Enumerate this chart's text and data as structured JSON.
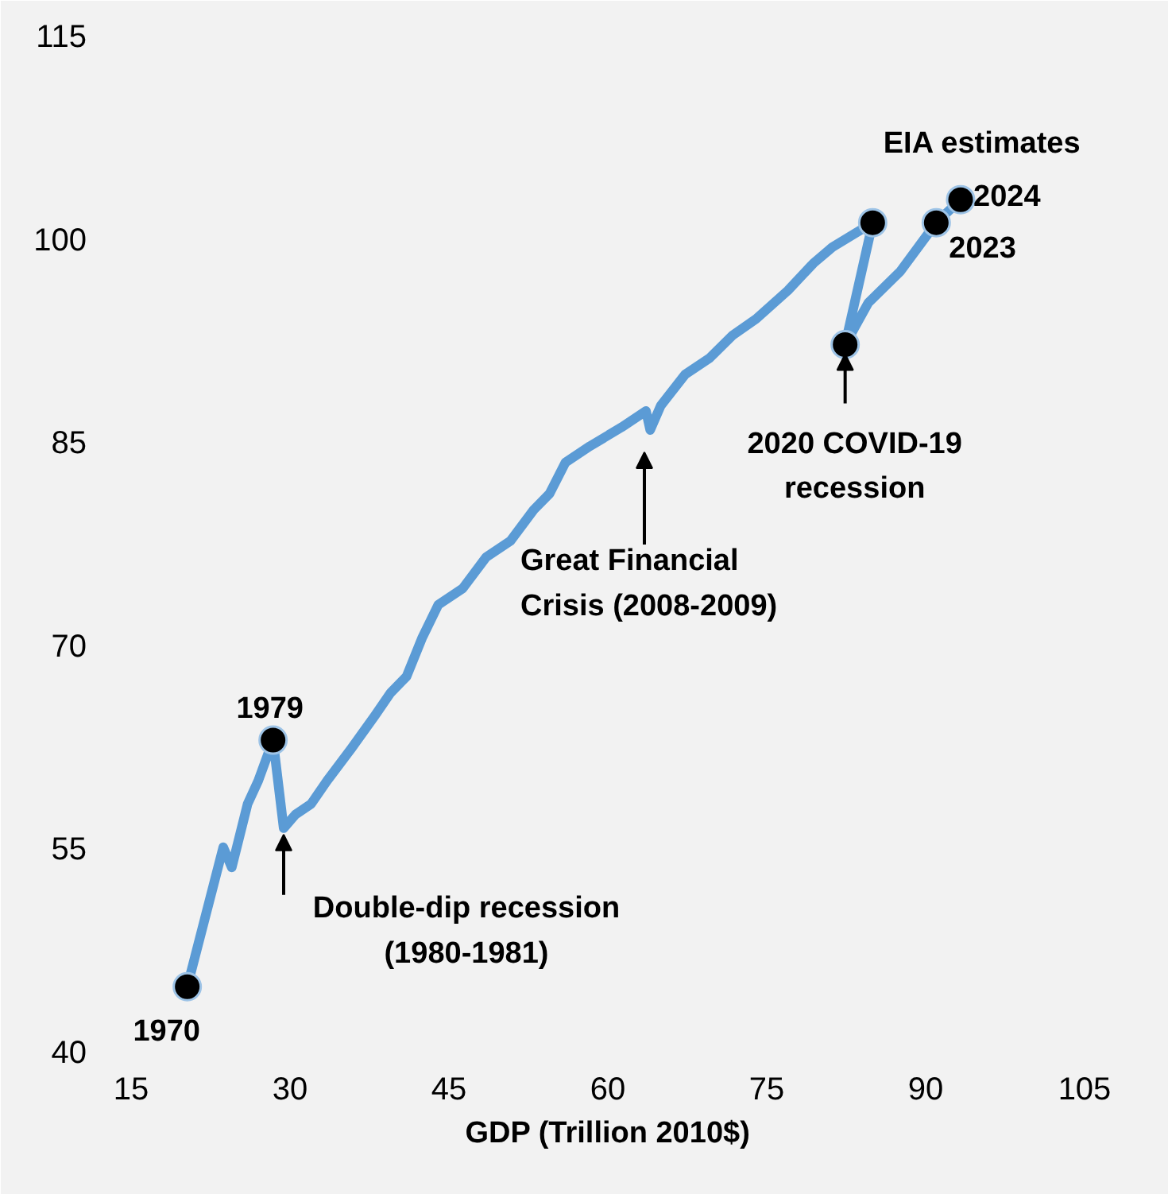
{
  "chart_data": {
    "type": "line",
    "xlabel": "GDP (Trillion 2010$)",
    "xlim": [
      15,
      105
    ],
    "xticks": [
      15,
      30,
      45,
      60,
      75,
      90,
      105
    ],
    "ylim": [
      40,
      115
    ],
    "yticks": [
      40,
      55,
      70,
      85,
      100,
      115
    ],
    "grid": false,
    "marker": "none",
    "line_style": "solid",
    "series": [
      {
        "type": "line",
        "color": "#5b9bd5",
        "x": [
          20.3,
          23.7,
          24.5,
          26,
          27,
          28.4,
          29.4,
          30.5,
          32,
          33.5,
          35.8,
          38,
          39.5,
          41,
          42.5,
          44,
          46.3,
          48.5,
          50.8,
          53,
          54.5,
          56,
          58.3,
          61.3,
          63.6,
          64,
          65,
          67.3,
          69.6,
          71.8,
          74,
          77,
          79.4,
          81.2,
          85,
          82.4,
          84.6,
          87.6,
          91,
          93.3
        ],
        "values": [
          44.8,
          55.1,
          53.6,
          58.3,
          60,
          63,
          56.5,
          57.5,
          58.3,
          60,
          62.4,
          64.8,
          66.5,
          67.7,
          70.6,
          73,
          74.2,
          76.5,
          77.7,
          80,
          81.2,
          83.5,
          84.7,
          86.1,
          87.3,
          85.9,
          87.7,
          90,
          91.2,
          92.9,
          94.1,
          96.2,
          98.2,
          99.4,
          101.2,
          92.2,
          95.3,
          97.6,
          101.2,
          102.9
        ]
      },
      {
        "type": "scatter",
        "color": "#000000",
        "marker": "circle",
        "x": [
          20.3,
          28.4,
          85,
          82.4,
          91,
          93.3
        ],
        "values": [
          44.8,
          63,
          101.2,
          92.2,
          101.2,
          102.9
        ]
      }
    ],
    "annotations": [
      {
        "text": "1970",
        "x": 20.3,
        "y": 44.8
      },
      {
        "text": "1979",
        "x": 28.4,
        "y": 63
      },
      {
        "text": "Double-dip recession\n(1980-1981)",
        "x": 29.4,
        "y": 56.5
      },
      "Great Financial\nCrisis (2008-2009)",
      {
        "text": "2020 COVID-19\nrecession",
        "x": 82.4,
        "y": 92.2
      },
      {
        "text": "2023",
        "x": 91,
        "y": 101.2
      },
      {
        "text": "2024",
        "x": 93.3,
        "y": 102.9
      },
      "EIA estimates"
    ]
  }
}
